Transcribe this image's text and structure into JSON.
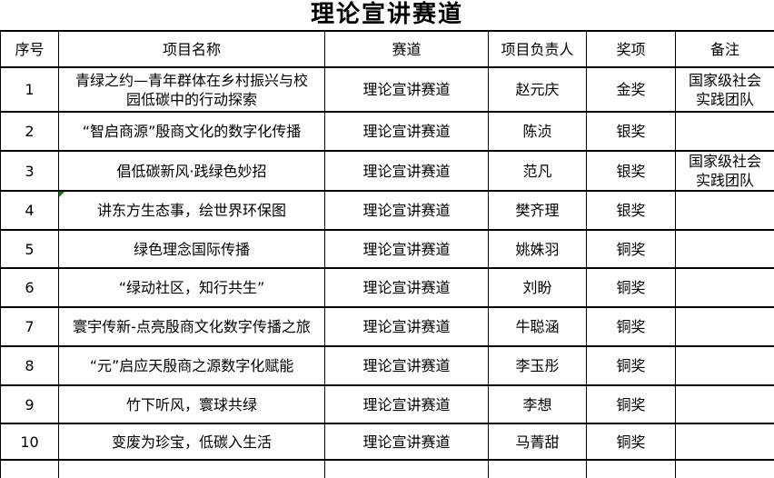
{
  "title": "理论宣讲赛道",
  "colors": {
    "border": "#000000",
    "text": "#000000",
    "background": "#ffffff",
    "marker_green": "#008000"
  },
  "table": {
    "columns": [
      {
        "key": "index",
        "label": "序号"
      },
      {
        "key": "name",
        "label": "项目名称"
      },
      {
        "key": "track",
        "label": "赛道"
      },
      {
        "key": "leader",
        "label": "项目负责人"
      },
      {
        "key": "award",
        "label": "奖项"
      },
      {
        "key": "remark",
        "label": "备注"
      }
    ],
    "rows": [
      {
        "index": "1",
        "name": "青绿之约—青年群体在乡村振兴与校园低碳中的行动探索",
        "track": "理论宣讲赛道",
        "leader": "赵元庆",
        "award": "金奖",
        "remark": "国家级社会实践团队"
      },
      {
        "index": "2",
        "name": "“智启商源”殷商文化的数字化传播",
        "track": "理论宣讲赛道",
        "leader": "陈浈",
        "award": "银奖",
        "remark": ""
      },
      {
        "index": "3",
        "name": "倡低碳新风·践绿色妙招",
        "track": "理论宣讲赛道",
        "leader": "范凡",
        "award": "银奖",
        "remark": "国家级社会实践团队"
      },
      {
        "index": "4",
        "name": "讲东方生态事，绘世界环保图",
        "track": "理论宣讲赛道",
        "leader": "樊齐理",
        "award": "银奖",
        "remark": "",
        "corner_marker": true
      },
      {
        "index": "5",
        "name": "绿色理念国际传播",
        "track": "理论宣讲赛道",
        "leader": "姚姝羽",
        "award": "铜奖",
        "remark": ""
      },
      {
        "index": "6",
        "name": "“绿动社区，知行共生”",
        "track": "理论宣讲赛道",
        "leader": "刘盼",
        "award": "铜奖",
        "remark": ""
      },
      {
        "index": "7",
        "name": "寰宇传新-点亮殷商文化数字传播之旅",
        "track": "理论宣讲赛道",
        "leader": "牛聪涵",
        "award": "铜奖",
        "remark": ""
      },
      {
        "index": "8",
        "name": "“元”启应天殷商之源数字化赋能",
        "track": "理论宣讲赛道",
        "leader": "李玉彤",
        "award": "铜奖",
        "remark": ""
      },
      {
        "index": "9",
        "name": "竹下听风，寰球共绿",
        "track": "理论宣讲赛道",
        "leader": "李想",
        "award": "铜奖",
        "remark": ""
      },
      {
        "index": "10",
        "name": "变废为珍宝，低碳入生活",
        "track": "理论宣讲赛道",
        "leader": "马菁甜",
        "award": "铜奖",
        "remark": ""
      }
    ]
  }
}
